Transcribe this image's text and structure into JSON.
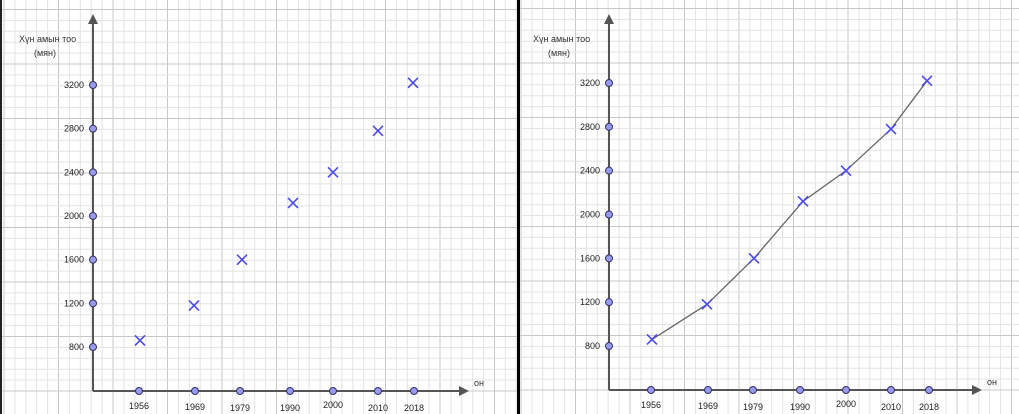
{
  "colors": {
    "grid_minor": "#e3e3e3",
    "grid_major": "#c8c8c8",
    "axis": "#555555",
    "axis_point_fill": "#9999ee",
    "axis_point_stroke": "#333366",
    "marker": "#4a4aee",
    "line": "#666666"
  },
  "chart_data": [
    {
      "type": "scatter",
      "marker": "x",
      "ylabel_line1": "Хүн амын тоо",
      "ylabel_line2": "(мян)",
      "xlabel": "он",
      "x_ticks": [
        "1956",
        "1969",
        "1979",
        "1990",
        "2000",
        "2010",
        "2018"
      ],
      "y_ticks": [
        "800",
        "1200",
        "1600",
        "2000",
        "2400",
        "2800",
        "3200"
      ],
      "series": [
        {
          "x": [
            "1956",
            "1969",
            "1979",
            "1990",
            "2000",
            "2010",
            "2018"
          ],
          "y": [
            860,
            1180,
            1600,
            2120,
            2400,
            2780,
            3220
          ]
        }
      ],
      "grid": true
    },
    {
      "type": "line",
      "marker": "x",
      "ylabel_line1": "Хүн амын тоо",
      "ylabel_line2": "(мян)",
      "xlabel": "он",
      "x_ticks": [
        "1956",
        "1969",
        "1979",
        "1990",
        "2000",
        "2010",
        "2018"
      ],
      "y_ticks": [
        "800",
        "1200",
        "1600",
        "2000",
        "2400",
        "2800",
        "3200"
      ],
      "series": [
        {
          "x": [
            "1956",
            "1969",
            "1979",
            "1990",
            "2000",
            "2010",
            "2018"
          ],
          "y": [
            860,
            1180,
            1600,
            2120,
            2400,
            2780,
            3220
          ]
        }
      ],
      "grid": true
    }
  ]
}
